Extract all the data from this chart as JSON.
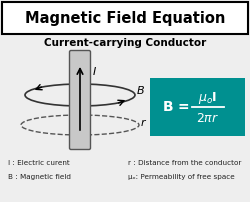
{
  "title": "Magnetic Field Equation",
  "subtitle": "Current-carrying Conductor",
  "bg_color": "#eeeeee",
  "title_box_color": "#ffffff",
  "title_color": "#000000",
  "subtitle_color": "#000000",
  "conductor_color": "#c8c8c8",
  "conductor_edge": "#555555",
  "teal_box_color": "#009090",
  "equation_color": "#ffffff",
  "legend_color": "#222222",
  "label_I": "I",
  "label_B": "B",
  "label_r": "r",
  "legend_lines": [
    "I : Electric curent",
    "B : Magnetic field",
    "r : Distance from the conductor",
    "μₒ: Permeability of free space"
  ]
}
